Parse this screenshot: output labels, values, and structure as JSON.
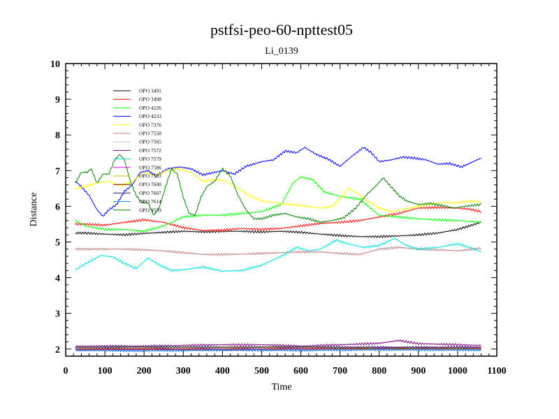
{
  "chart_data": {
    "type": "line",
    "title": "pstfsi-peo-60-npttest05",
    "subtitle": "Li_0139",
    "xlabel": "Time",
    "ylabel": "Distance",
    "xlim": [
      0,
      1100
    ],
    "ylim": [
      1.8,
      10
    ],
    "x_ticks": [
      0,
      100,
      200,
      300,
      400,
      500,
      600,
      700,
      800,
      900,
      1000,
      1100
    ],
    "y_ticks": [
      2,
      3,
      4,
      5,
      6,
      7,
      8,
      9,
      10
    ],
    "x_minor_step": 20,
    "y_minor_step": 0.2,
    "grid": false,
    "legend_position": "top-left",
    "series": [
      {
        "name": "OPO 3491",
        "color": "#000000",
        "x": [
          25,
          50,
          100,
          150,
          200,
          250,
          300,
          350,
          400,
          450,
          500,
          550,
          600,
          650,
          700,
          750,
          800,
          850,
          900,
          950,
          1000,
          1030,
          1060
        ],
        "y": [
          5.25,
          5.25,
          5.22,
          5.2,
          5.24,
          5.27,
          5.3,
          5.28,
          5.3,
          5.3,
          5.28,
          5.3,
          5.27,
          5.22,
          5.18,
          5.15,
          5.15,
          5.17,
          5.2,
          5.25,
          5.35,
          5.45,
          5.55
        ]
      },
      {
        "name": "OPO 3498",
        "color": "#ff0000",
        "x": [
          25,
          50,
          100,
          150,
          200,
          250,
          300,
          350,
          400,
          450,
          500,
          550,
          600,
          650,
          700,
          750,
          800,
          850,
          900,
          950,
          1000,
          1030,
          1060
        ],
        "y": [
          5.5,
          5.5,
          5.47,
          5.55,
          5.62,
          5.55,
          5.4,
          5.32,
          5.33,
          5.38,
          5.35,
          5.38,
          5.45,
          5.52,
          5.55,
          5.6,
          5.7,
          5.8,
          5.95,
          5.97,
          5.95,
          5.92,
          5.85
        ]
      },
      {
        "name": "OPO 4226",
        "color": "#00ff00",
        "x": [
          25,
          50,
          100,
          150,
          200,
          250,
          300,
          350,
          400,
          450,
          500,
          550,
          580,
          600,
          630,
          660,
          700,
          750,
          800,
          850,
          900,
          950,
          1000,
          1030,
          1060
        ],
        "y": [
          5.6,
          5.45,
          5.35,
          5.35,
          5.3,
          5.45,
          5.7,
          5.75,
          5.75,
          5.8,
          5.85,
          6.05,
          6.65,
          6.82,
          6.75,
          6.4,
          6.28,
          6.2,
          5.75,
          5.7,
          5.65,
          5.62,
          5.6,
          5.58,
          5.55
        ]
      },
      {
        "name": "OPO 4233",
        "color": "#0000ff",
        "x": [
          25,
          40,
          60,
          80,
          95,
          110,
          130,
          150,
          170,
          190,
          210,
          230,
          260,
          290,
          320,
          350,
          380,
          400,
          430,
          460,
          500,
          530,
          560,
          590,
          610,
          640,
          670,
          700,
          730,
          760,
          780,
          800,
          830,
          860,
          890,
          920,
          950,
          980,
          1010,
          1040,
          1060
        ],
        "y": [
          6.7,
          6.55,
          6.3,
          5.9,
          5.72,
          5.9,
          6.05,
          6.42,
          6.6,
          6.95,
          7.0,
          6.85,
          7.05,
          7.1,
          7.05,
          6.88,
          6.95,
          7.0,
          6.9,
          7.12,
          7.25,
          7.3,
          7.55,
          7.5,
          7.65,
          7.45,
          7.32,
          7.12,
          7.4,
          7.65,
          7.5,
          7.25,
          7.3,
          7.38,
          7.35,
          7.3,
          7.18,
          7.2,
          7.1,
          7.25,
          7.35
        ]
      },
      {
        "name": "OPO 7376",
        "color": "#ffff00",
        "x": [
          25,
          50,
          80,
          110,
          140,
          170,
          200,
          230,
          260,
          290,
          320,
          350,
          380,
          410,
          440,
          470,
          500,
          550,
          600,
          650,
          680,
          700,
          720,
          740,
          770,
          800,
          830,
          860,
          900,
          950,
          1000,
          1030,
          1060
        ],
        "y": [
          6.5,
          6.55,
          6.65,
          6.7,
          6.58,
          6.68,
          6.95,
          6.85,
          7.0,
          7.05,
          6.95,
          6.7,
          6.75,
          6.7,
          6.5,
          6.3,
          6.15,
          6.08,
          6.02,
          5.95,
          6.0,
          6.2,
          6.5,
          6.4,
          6.15,
          5.95,
          5.85,
          5.9,
          6.0,
          6.1,
          6.1,
          6.15,
          6.12
        ]
      },
      {
        "name": "OPO 7558",
        "color": "#c08080",
        "x": [
          25,
          100,
          150,
          200,
          250,
          300,
          350,
          400,
          450,
          500,
          550,
          600,
          650,
          700,
          750,
          800,
          850,
          900,
          950,
          1000,
          1060
        ],
        "y": [
          4.8,
          4.8,
          4.8,
          4.78,
          4.75,
          4.7,
          4.65,
          4.65,
          4.66,
          4.68,
          4.7,
          4.72,
          4.72,
          4.68,
          4.65,
          4.8,
          4.85,
          4.8,
          4.78,
          4.75,
          4.82
        ]
      },
      {
        "name": "OPO 7565",
        "color": "#c0c0e0",
        "x": [
          25,
          200,
          400,
          600,
          800,
          1060
        ],
        "y": [
          1.97,
          1.96,
          1.98,
          1.97,
          1.99,
          1.98
        ]
      },
      {
        "name": "OPO 7572",
        "color": "#800080",
        "x": [
          25,
          100,
          200,
          300,
          400,
          500,
          600,
          700,
          800,
          850,
          900,
          1000,
          1060
        ],
        "y": [
          2.08,
          2.08,
          2.08,
          2.1,
          2.12,
          2.12,
          2.08,
          2.12,
          2.16,
          2.24,
          2.15,
          2.12,
          2.1
        ]
      },
      {
        "name": "OPO 7579",
        "color": "#00e0e0",
        "x": [
          25,
          60,
          90,
          120,
          150,
          180,
          210,
          240,
          270,
          300,
          350,
          400,
          450,
          500,
          550,
          590,
          620,
          650,
          690,
          720,
          760,
          800,
          840,
          870,
          900,
          950,
          1000,
          1030,
          1060
        ],
        "y": [
          4.22,
          4.45,
          4.62,
          4.58,
          4.4,
          4.25,
          4.55,
          4.35,
          4.2,
          4.22,
          4.3,
          4.18,
          4.2,
          4.35,
          4.6,
          4.85,
          4.75,
          4.8,
          5.05,
          4.95,
          4.85,
          4.9,
          5.1,
          4.9,
          4.8,
          4.85,
          4.95,
          4.85,
          4.72
        ]
      },
      {
        "name": "OPO 7586",
        "color": "#ff00ff",
        "x": [
          25,
          200,
          400,
          600,
          800,
          1060
        ],
        "y": [
          2.0,
          2.0,
          2.01,
          2.02,
          2.03,
          2.04
        ]
      },
      {
        "name": "OPO 7593",
        "color": "#c0c000",
        "x": [
          25,
          200,
          400,
          600,
          800,
          1060
        ],
        "y": [
          2.02,
          2.03,
          2.04,
          2.05,
          2.02,
          2.03
        ]
      },
      {
        "name": "OPO 7600",
        "color": "#800000",
        "x": [
          25,
          200,
          400,
          600,
          800,
          1060
        ],
        "y": [
          1.99,
          2.0,
          1.98,
          2.0,
          2.01,
          2.0
        ]
      },
      {
        "name": "OPO 7607",
        "color": "#202060",
        "x": [
          25,
          200,
          400,
          600,
          800,
          1060
        ],
        "y": [
          2.05,
          2.06,
          2.05,
          2.06,
          2.05,
          2.05
        ]
      },
      {
        "name": "OPO 7614",
        "color": "#0080ff",
        "x": [
          25,
          200,
          400,
          600,
          800,
          1060
        ],
        "y": [
          1.96,
          1.95,
          1.97,
          1.96,
          1.98,
          1.97
        ]
      },
      {
        "name": "OPO 9539",
        "color": "#008000",
        "x": [
          25,
          40,
          55,
          65,
          80,
          95,
          110,
          125,
          138,
          150,
          165,
          180,
          195,
          210,
          225,
          240,
          255,
          270,
          285,
          300,
          315,
          330,
          345,
          360,
          380,
          400,
          420,
          440,
          460,
          480,
          500,
          530,
          560,
          590,
          620,
          650,
          680,
          710,
          740,
          770,
          790,
          810,
          830,
          850,
          870,
          900,
          930,
          960,
          990,
          1020,
          1060
        ],
        "y": [
          6.65,
          6.95,
          6.95,
          7.05,
          6.65,
          6.9,
          6.9,
          7.3,
          7.45,
          7.3,
          6.7,
          6.3,
          6.1,
          6.1,
          5.75,
          6.0,
          6.55,
          7.05,
          6.9,
          6.25,
          5.8,
          5.75,
          6.25,
          6.55,
          6.7,
          7.05,
          6.85,
          6.3,
          5.9,
          5.65,
          5.65,
          5.75,
          5.8,
          5.7,
          5.65,
          5.55,
          5.6,
          5.68,
          5.95,
          6.35,
          6.55,
          6.8,
          6.55,
          6.3,
          6.15,
          6.05,
          6.08,
          6.02,
          5.95,
          6.0,
          6.05
        ]
      }
    ]
  }
}
